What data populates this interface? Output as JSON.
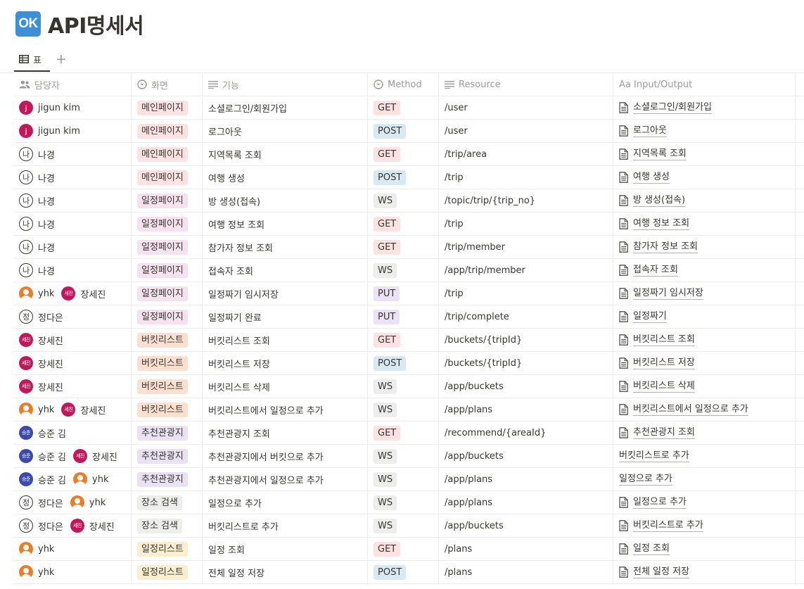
{
  "page": {
    "icon_text": "OK",
    "title": "API명세서"
  },
  "view_tab": {
    "label": "표",
    "add": "+"
  },
  "columns": [
    "담당자",
    "화면",
    "기능",
    "Method",
    "Resource",
    "Aa Input/Output"
  ],
  "colors": {
    "screen": {
      "메인페이지": "#fde2e1",
      "일정페이지": "#f6e2ee",
      "버킷리스트": "#fbe0d0",
      "추천관광지": "#e8e2f4",
      "장소 검색": "#ededec",
      "일정리스트": "#fbefcf"
    },
    "method": {
      "GET": "#fde2e1",
      "POST": "#d8e9f3",
      "WS": "#ededec",
      "PUT": "#eae2f5"
    }
  },
  "rows": [
    {
      "people": [
        {
          "name": "jigun kim",
          "avatar": "j",
          "avatar_text": "j"
        }
      ],
      "screen": "메인페이지",
      "feature": "소셜로그인/회원가입",
      "method": "GET",
      "resource": "/user",
      "io": "소셜로그인/회원가입",
      "io_icon": true
    },
    {
      "people": [
        {
          "name": "jigun kim",
          "avatar": "j",
          "avatar_text": "j"
        }
      ],
      "screen": "메인페이지",
      "feature": "로그아웃",
      "method": "POST",
      "resource": "/user",
      "io": "로그아웃",
      "io_icon": true
    },
    {
      "people": [
        {
          "name": "나경",
          "avatar": "na",
          "avatar_text": "나"
        }
      ],
      "screen": "메인페이지",
      "feature": "지역목록 조회",
      "method": "GET",
      "resource": "/trip/area",
      "io": "지역목록 조회",
      "io_icon": true
    },
    {
      "people": [
        {
          "name": "나경",
          "avatar": "na",
          "avatar_text": "나"
        }
      ],
      "screen": "메인페이지",
      "feature": "여행 생성",
      "method": "POST",
      "resource": "/trip",
      "io": "여행 생성",
      "io_icon": true
    },
    {
      "people": [
        {
          "name": "나경",
          "avatar": "na",
          "avatar_text": "나"
        }
      ],
      "screen": "일정페이지",
      "feature": "방 생성(접속)",
      "method": "WS",
      "resource": "/topic/trip/{trip_no}",
      "io": "방 생성(접속)",
      "io_icon": true
    },
    {
      "people": [
        {
          "name": "나경",
          "avatar": "na",
          "avatar_text": "나"
        }
      ],
      "screen": "일정페이지",
      "feature": "여행 정보 조회",
      "method": "GET",
      "resource": "/trip",
      "io": "여행 정보 조회",
      "io_icon": true
    },
    {
      "people": [
        {
          "name": "나경",
          "avatar": "na",
          "avatar_text": "나"
        }
      ],
      "screen": "일정페이지",
      "feature": "참가자 정보 조회",
      "method": "GET",
      "resource": "/trip/member",
      "io": "참가자 정보 조회",
      "io_icon": true
    },
    {
      "people": [
        {
          "name": "나경",
          "avatar": "na",
          "avatar_text": "나"
        }
      ],
      "screen": "일정페이지",
      "feature": "접속자 조회",
      "method": "WS",
      "resource": "/app/trip/member",
      "io": "접속자 조회",
      "io_icon": true
    },
    {
      "people": [
        {
          "name": "yhk",
          "avatar": "yhk",
          "avatar_text": ""
        },
        {
          "name": "장세진",
          "avatar": "sejin",
          "avatar_text": "세진"
        }
      ],
      "screen": "일정페이지",
      "feature": "일정짜기 임시저장",
      "method": "PUT",
      "resource": "/trip",
      "io": "일정짜기 임시저장",
      "io_icon": true
    },
    {
      "people": [
        {
          "name": "정다은",
          "avatar": "jeong",
          "avatar_text": "정"
        }
      ],
      "screen": "일정페이지",
      "feature": "일정짜기 완료",
      "method": "PUT",
      "resource": "/trip/complete",
      "io": "일정짜기",
      "io_icon": true
    },
    {
      "people": [
        {
          "name": "장세진",
          "avatar": "sejin",
          "avatar_text": "세진"
        }
      ],
      "screen": "버킷리스트",
      "feature": "버킷리스트 조회",
      "method": "GET",
      "resource": "/buckets/{tripId}",
      "io": "버킷리스트 조회",
      "io_icon": true
    },
    {
      "people": [
        {
          "name": "장세진",
          "avatar": "sejin",
          "avatar_text": "세진"
        }
      ],
      "screen": "버킷리스트",
      "feature": "버킷리스트 저장",
      "method": "POST",
      "resource": "/buckets/{tripId}",
      "io": "버킷리스트 저장",
      "io_icon": true
    },
    {
      "people": [
        {
          "name": "장세진",
          "avatar": "sejin",
          "avatar_text": "세진"
        }
      ],
      "screen": "버킷리스트",
      "feature": "버킷리스트 삭제",
      "method": "WS",
      "resource": "/app/buckets",
      "io": "버킷리스트 삭제",
      "io_icon": true
    },
    {
      "people": [
        {
          "name": "yhk",
          "avatar": "yhk",
          "avatar_text": ""
        },
        {
          "name": "장세진",
          "avatar": "sejin",
          "avatar_text": "세진"
        }
      ],
      "screen": "버킷리스트",
      "feature": "버킷리스트에서 일정으로 추가",
      "method": "WS",
      "resource": "/app/plans",
      "io": "버킷리스트에서 일정으로 추가",
      "io_icon": true
    },
    {
      "people": [
        {
          "name": "승준 김",
          "avatar": "sj",
          "avatar_text": "승준"
        }
      ],
      "screen": "추천관광지",
      "feature": "추천관광지 조회",
      "method": "GET",
      "resource": "/recommend/{areaId}",
      "io": "추천관광지 조회",
      "io_icon": true
    },
    {
      "people": [
        {
          "name": "승준 김",
          "avatar": "sj",
          "avatar_text": "승준"
        },
        {
          "name": "장세진",
          "avatar": "sejin",
          "avatar_text": "세진"
        }
      ],
      "screen": "추천관광지",
      "feature": "추천관광지에서 버킷으로 추가",
      "method": "WS",
      "resource": "/app/buckets",
      "io": "버킷리스트로 추가",
      "io_icon": false
    },
    {
      "people": [
        {
          "name": "승준 김",
          "avatar": "sj",
          "avatar_text": "승준"
        },
        {
          "name": "yhk",
          "avatar": "yhk",
          "avatar_text": ""
        }
      ],
      "screen": "추천관광지",
      "feature": "추천관광지에서 일정으로 추가",
      "method": "WS",
      "resource": "/app/plans",
      "io": "일정으로 추가",
      "io_icon": false
    },
    {
      "people": [
        {
          "name": "정다은",
          "avatar": "jeong",
          "avatar_text": "정"
        },
        {
          "name": "yhk",
          "avatar": "yhk",
          "avatar_text": ""
        }
      ],
      "screen": "장소 검색",
      "feature": "일정으로 추가",
      "method": "WS",
      "resource": "/app/plans",
      "io": "일정으로 추가",
      "io_icon": true
    },
    {
      "people": [
        {
          "name": "정다은",
          "avatar": "jeong",
          "avatar_text": "정"
        },
        {
          "name": "장세진",
          "avatar": "sejin",
          "avatar_text": "세진"
        }
      ],
      "screen": "장소 검색",
      "feature": "버킷리스트로 추가",
      "method": "WS",
      "resource": "/app/buckets",
      "io": "버킷리스트로 추가",
      "io_icon": true
    },
    {
      "people": [
        {
          "name": "yhk",
          "avatar": "yhk",
          "avatar_text": ""
        }
      ],
      "screen": "일정리스트",
      "feature": "일정 조회",
      "method": "GET",
      "resource": "/plans",
      "io": "일정 조회",
      "io_icon": true
    },
    {
      "people": [
        {
          "name": "yhk",
          "avatar": "yhk",
          "avatar_text": ""
        }
      ],
      "screen": "일정리스트",
      "feature": "전체 일정 저장",
      "method": "POST",
      "resource": "/plans",
      "io": "전체 일정 저장",
      "io_icon": true
    }
  ]
}
